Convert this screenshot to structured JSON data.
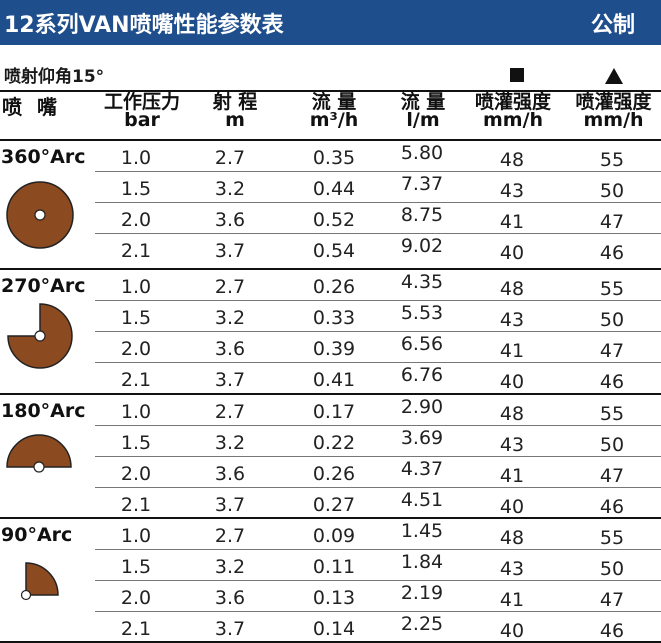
{
  "header": {
    "title": "12系列VAN喷嘴性能参数表",
    "unit": "公制"
  },
  "subtitle": "喷射仰角15°",
  "columns": {
    "nozzle": "喷 嘴",
    "pressure": {
      "l1": "工作压力",
      "l2": "bar"
    },
    "radius": {
      "l1": "射 程",
      "l2": "m"
    },
    "flow_m3": {
      "l1": "流 量",
      "l2": "m³/h"
    },
    "flow_lm": {
      "l1": "流 量",
      "l2": "l/m"
    },
    "precip_sq": {
      "l1": "喷灌强度",
      "l2": "mm/h"
    },
    "precip_tri": {
      "l1": "喷灌强度",
      "l2": "mm/h"
    }
  },
  "icons": {
    "legend_square": "square-icon",
    "legend_triangle": "triangle-icon",
    "arc_fill": "#8b4a20"
  },
  "groups": [
    {
      "arc": "360°Arc",
      "icon": "full-circle-arc-icon",
      "rows": [
        [
          "1.0",
          "2.7",
          "0.35",
          "5.80",
          "48",
          "55"
        ],
        [
          "1.5",
          "3.2",
          "0.44",
          "7.37",
          "43",
          "50"
        ],
        [
          "2.0",
          "3.6",
          "0.52",
          "8.75",
          "41",
          "47"
        ],
        [
          "2.1",
          "3.7",
          "0.54",
          "9.02",
          "40",
          "46"
        ]
      ]
    },
    {
      "arc": "270°Arc",
      "icon": "three-quarter-arc-icon",
      "rows": [
        [
          "1.0",
          "2.7",
          "0.26",
          "4.35",
          "48",
          "55"
        ],
        [
          "1.5",
          "3.2",
          "0.33",
          "5.53",
          "43",
          "50"
        ],
        [
          "2.0",
          "3.6",
          "0.39",
          "6.56",
          "41",
          "47"
        ],
        [
          "2.1",
          "3.7",
          "0.41",
          "6.76",
          "40",
          "46"
        ]
      ]
    },
    {
      "arc": "180°Arc",
      "icon": "half-circle-arc-icon",
      "rows": [
        [
          "1.0",
          "2.7",
          "0.17",
          "2.90",
          "48",
          "55"
        ],
        [
          "1.5",
          "3.2",
          "0.22",
          "3.69",
          "43",
          "50"
        ],
        [
          "2.0",
          "3.6",
          "0.26",
          "4.37",
          "41",
          "47"
        ],
        [
          "2.1",
          "3.7",
          "0.27",
          "4.51",
          "40",
          "46"
        ]
      ]
    },
    {
      "arc": "90°Arc",
      "icon": "quarter-circle-arc-icon",
      "rows": [
        [
          "1.0",
          "2.7",
          "0.09",
          "1.45",
          "48",
          "55"
        ],
        [
          "1.5",
          "3.2",
          "0.11",
          "1.84",
          "43",
          "50"
        ],
        [
          "2.0",
          "3.6",
          "0.13",
          "2.19",
          "41",
          "47"
        ],
        [
          "2.1",
          "3.7",
          "0.14",
          "2.25",
          "40",
          "46"
        ]
      ]
    }
  ]
}
